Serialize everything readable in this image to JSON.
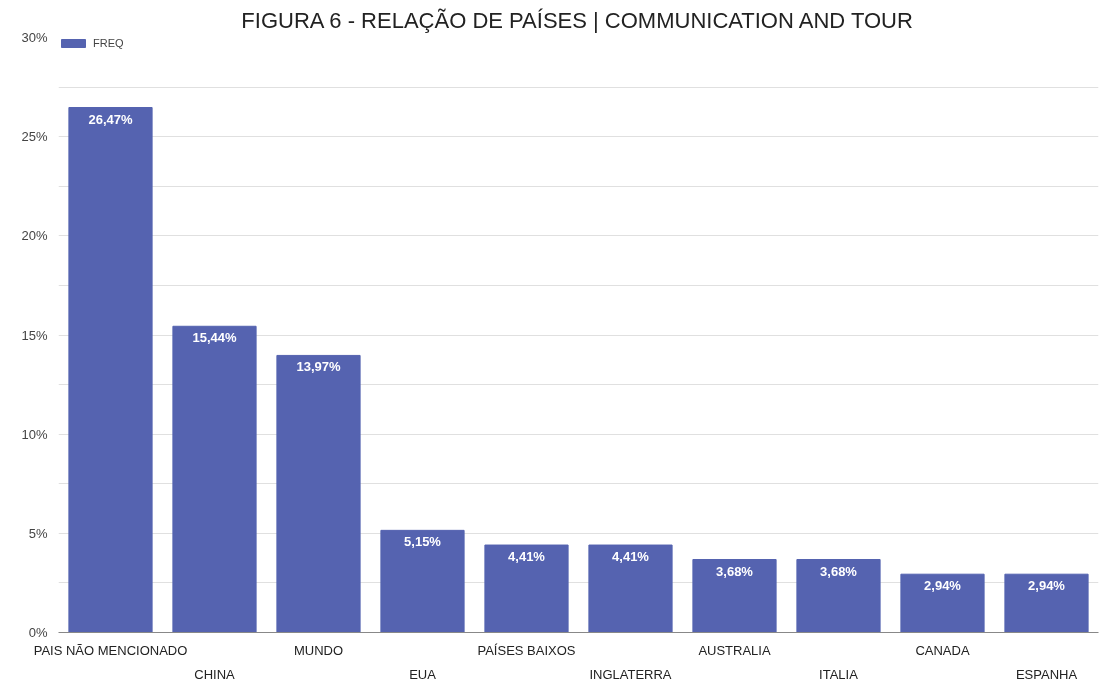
{
  "chart_data": {
    "type": "bar",
    "title": "FIGURA 6 - RELAÇÃO DE PAÍSES | COMMUNICATION AND TOUR",
    "categories": [
      "PAIS NÃO MENCIONADO",
      "CHINA",
      "MUNDO",
      "EUA",
      "PAÍSES BAIXOS",
      "INGLATERRA",
      "AUSTRALIA",
      "ITALIA",
      "CANADA",
      "ESPANHA"
    ],
    "series": [
      {
        "name": "FREQ",
        "color": "#5563b0",
        "values": [
          26.47,
          15.44,
          13.97,
          5.15,
          4.41,
          4.41,
          3.68,
          3.68,
          2.94,
          2.94
        ]
      }
    ],
    "value_labels": [
      "26,47%",
      "15,44%",
      "13,97%",
      "5,15%",
      "4,41%",
      "4,41%",
      "3,68%",
      "3,68%",
      "2,94%",
      "2,94%"
    ],
    "ylim": [
      0,
      30
    ],
    "yticks": [
      {
        "value": 0,
        "label": "0%"
      },
      {
        "value": 2.5,
        "label": null
      },
      {
        "value": 5,
        "label": "5%"
      },
      {
        "value": 7.5,
        "label": null
      },
      {
        "value": 10,
        "label": "10%"
      },
      {
        "value": 12.5,
        "label": null
      },
      {
        "value": 15,
        "label": "15%"
      },
      {
        "value": 17.5,
        "label": null
      },
      {
        "value": 20,
        "label": "20%"
      },
      {
        "value": 22.5,
        "label": null
      },
      {
        "value": 25,
        "label": "25%"
      },
      {
        "value": 27.5,
        "label": null
      },
      {
        "value": 30,
        "label": "30%"
      }
    ],
    "grid": "y",
    "legend": "top left"
  }
}
